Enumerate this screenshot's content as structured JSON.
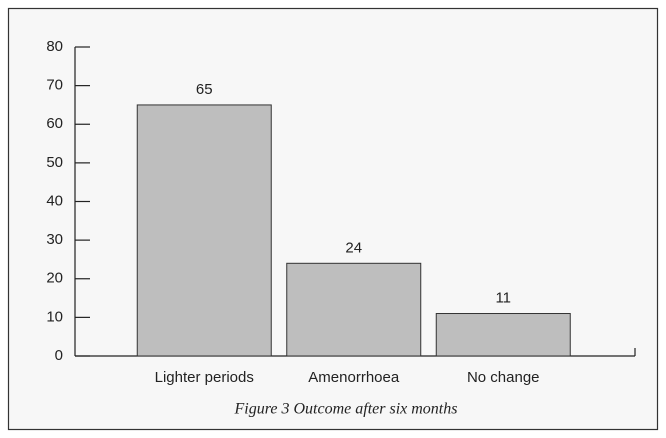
{
  "chart_data": {
    "type": "bar",
    "caption": "Figure 3 Outcome after six months",
    "categories": [
      "Lighter periods",
      "Amenorrhoea",
      "No change"
    ],
    "values": [
      65,
      24,
      11
    ],
    "color": "#bebebe",
    "ylim": [
      0,
      80
    ],
    "yticks": [
      0,
      10,
      20,
      30,
      40,
      50,
      60,
      70,
      80
    ],
    "grid": false
  }
}
